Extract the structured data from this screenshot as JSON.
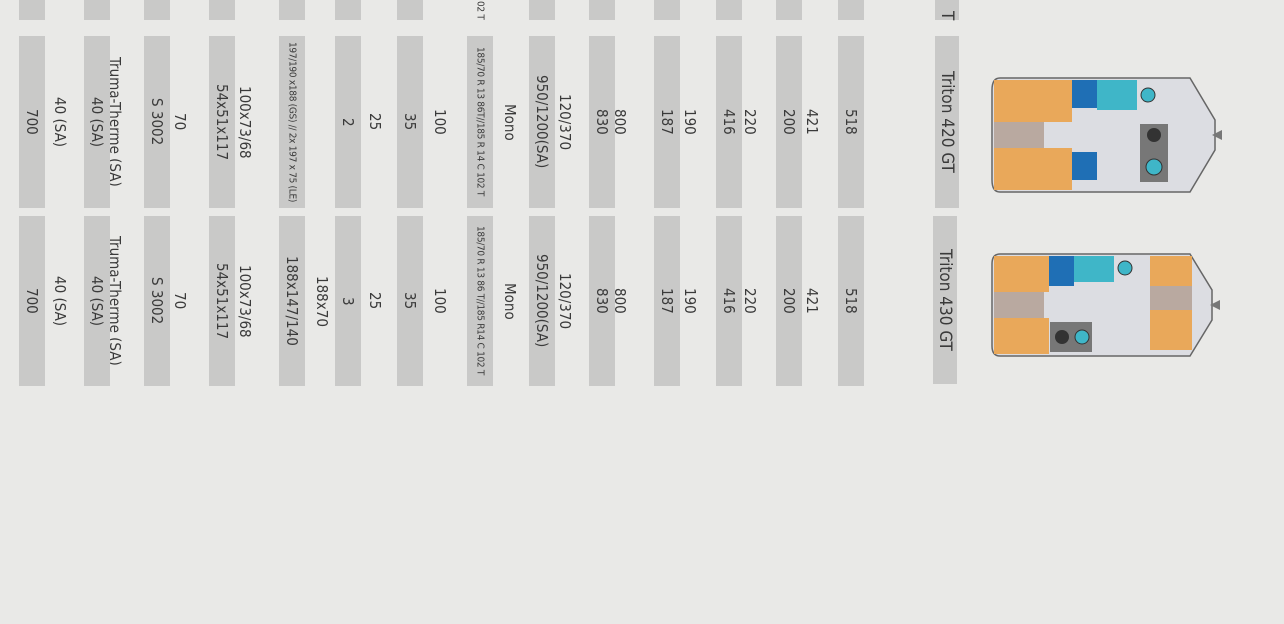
{
  "header": {
    "partial_label": "T",
    "models": [
      "Triton 420 GT",
      "Triton 430 GT"
    ]
  },
  "rows": [
    {
      "values": [
        "518",
        "518"
      ],
      "shaded": true
    },
    {
      "values": [
        "421",
        "421"
      ],
      "shaded": false
    },
    {
      "values": [
        "200",
        "200"
      ],
      "shaded": true
    },
    {
      "values": [
        "220",
        "220"
      ],
      "shaded": false
    },
    {
      "values": [
        "416",
        "416"
      ],
      "shaded": true
    },
    {
      "values": [
        "190",
        "190"
      ],
      "shaded": false
    },
    {
      "values": [
        "187",
        "187"
      ],
      "shaded": true
    },
    {
      "values": [
        "800",
        "800"
      ],
      "shaded": false
    },
    {
      "values": [
        "830",
        "830"
      ],
      "shaded": true
    },
    {
      "values": [
        "120/370",
        "120/370"
      ],
      "shaded": false
    },
    {
      "values": [
        "950/1200(SA)",
        "950/1200(SA)"
      ],
      "shaded": true
    },
    {
      "values": [
        "Mono",
        "Mono"
      ],
      "shaded": false
    },
    {
      "values": [
        "185/70 R 13 86T//185 R 14 C 102 T",
        "185/70 R 13 86 T//185 R14 C 102 T"
      ],
      "shaded": true,
      "small": true,
      "partial": "02 T"
    },
    {
      "values": [
        "100",
        "100"
      ],
      "shaded": false
    },
    {
      "values": [
        "35",
        "35"
      ],
      "shaded": true
    },
    {
      "values": [
        "25",
        "25"
      ],
      "shaded": false
    },
    {
      "values": [
        "2",
        "3"
      ],
      "shaded": true
    },
    {
      "values": [
        "",
        "188x70"
      ],
      "shaded": false
    },
    {
      "values": [
        "197/190 x188 (GS) // 2x 197 x 75 (LE)",
        "188x147/140"
      ],
      "shaded": true,
      "small_first": true
    },
    {
      "values": [
        "100x73/68",
        "100x73/68"
      ],
      "shaded": false
    },
    {
      "values": [
        "54x51x117",
        "54x51x117"
      ],
      "shaded": true
    },
    {
      "values": [
        "70",
        "70"
      ],
      "shaded": false
    },
    {
      "values": [
        "S 3002",
        "S 3002"
      ],
      "shaded": true
    },
    {
      "values": [
        "Truma-Therme (SA)",
        "Truma-Therme (SA)"
      ],
      "shaded": false
    },
    {
      "values": [
        "40 (SA)",
        "40 (SA)"
      ],
      "shaded": true
    },
    {
      "values": [
        "40 (SA)",
        "40 (SA)"
      ],
      "shaded": false
    },
    {
      "values": [
        "700",
        "700"
      ],
      "shaded": true
    }
  ],
  "colors": {
    "shade": "#c9c9c8",
    "page": "#e9e9e7",
    "seat": "#e9a85a",
    "kitchen": "#3fb6c8",
    "wardrobe": "#1f6fb5"
  }
}
